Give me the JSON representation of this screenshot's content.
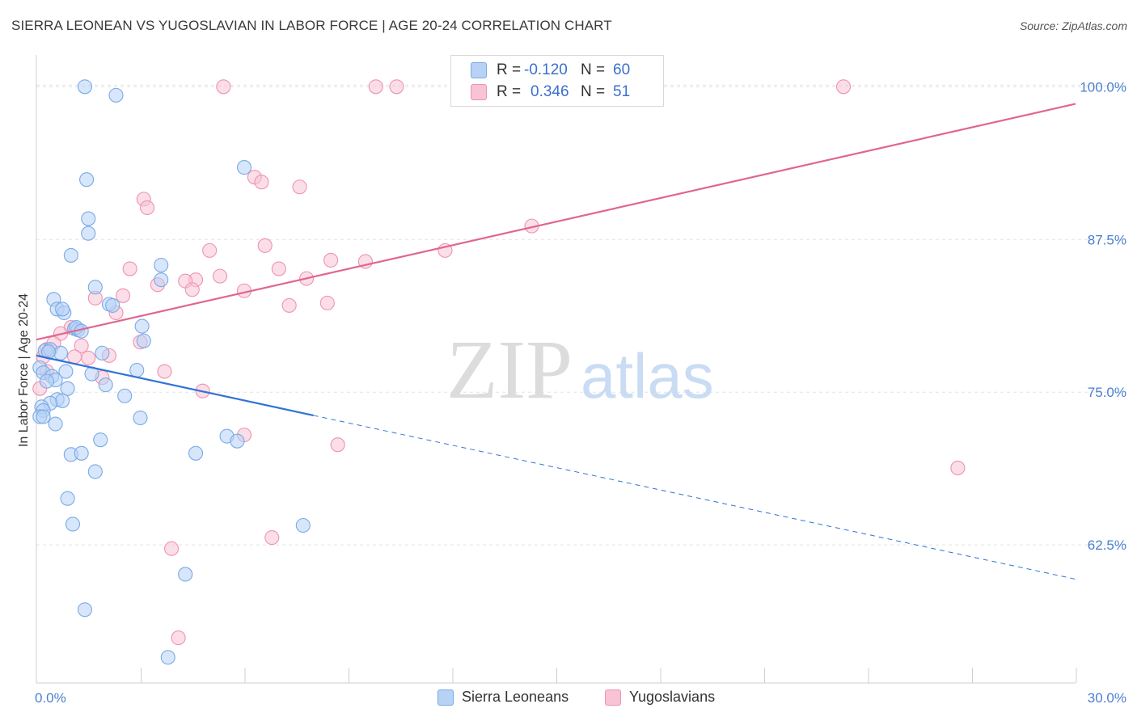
{
  "title": "SIERRA LEONEAN VS YUGOSLAVIAN IN LABOR FORCE | AGE 20-24 CORRELATION CHART",
  "source": "Source: ZipAtlas.com",
  "watermark": {
    "zip": "ZIP",
    "atlas": "atlas"
  },
  "colors": {
    "blue_fill": "#b7d2f5",
    "blue_stroke": "#7aaae6",
    "blue_line": "#2f74d6",
    "pink_fill": "#f8c3d4",
    "pink_stroke": "#ee93b1",
    "pink_line": "#e0668f",
    "grid": "#e4e4e4",
    "tick_text": "#4a7fcf"
  },
  "legend": {
    "rows": [
      {
        "r_label": "R =",
        "r_value": "-0.120",
        "n_label": "N =",
        "n_value": "60",
        "series": "blue"
      },
      {
        "r_label": "R =",
        "r_value": "0.346",
        "n_label": "N =",
        "n_value": "51",
        "series": "pink"
      }
    ]
  },
  "bottom_legend": [
    "Sierra Leoneans",
    "Yugoslavians"
  ],
  "chart_data": {
    "type": "scatter",
    "title": "SIERRA LEONEAN VS YUGOSLAVIAN IN LABOR FORCE | AGE 20-24 CORRELATION CHART",
    "xlabel": "",
    "ylabel": "In Labor Force | Age 20-24",
    "xlim": [
      0,
      30
    ],
    "ylim": [
      51.2,
      102.6
    ],
    "x_tick_labels": [
      {
        "value": 0,
        "label": "0.0%"
      },
      {
        "value": 30,
        "label": "30.0%"
      }
    ],
    "x_minor_ticks": [
      3,
      6,
      9,
      12,
      15,
      18,
      21,
      24,
      27,
      30
    ],
    "y_ticks": [
      {
        "value": 62.5,
        "label": "62.5%"
      },
      {
        "value": 75.0,
        "label": "75.0%"
      },
      {
        "value": 87.5,
        "label": "87.5%"
      },
      {
        "value": 100.0,
        "label": "100.0%"
      }
    ],
    "series": [
      {
        "name": "Sierra Leoneans",
        "color": "blue",
        "points": [
          [
            1.4,
            100.0
          ],
          [
            2.3,
            99.3
          ],
          [
            1.45,
            92.4
          ],
          [
            6.0,
            93.4
          ],
          [
            1.5,
            89.2
          ],
          [
            1.5,
            88.0
          ],
          [
            1.0,
            86.2
          ],
          [
            3.6,
            85.4
          ],
          [
            0.5,
            82.6
          ],
          [
            1.7,
            83.6
          ],
          [
            2.1,
            82.2
          ],
          [
            2.2,
            82.1
          ],
          [
            0.6,
            81.8
          ],
          [
            0.8,
            81.5
          ],
          [
            0.75,
            81.8
          ],
          [
            3.05,
            80.4
          ],
          [
            1.1,
            80.2
          ],
          [
            1.2,
            80.1
          ],
          [
            1.15,
            80.3
          ],
          [
            1.3,
            80.0
          ],
          [
            3.1,
            79.2
          ],
          [
            0.25,
            78.4
          ],
          [
            0.4,
            78.5
          ],
          [
            0.7,
            78.2
          ],
          [
            1.9,
            78.2
          ],
          [
            0.35,
            78.3
          ],
          [
            0.1,
            77.0
          ],
          [
            0.2,
            76.6
          ],
          [
            0.85,
            76.7
          ],
          [
            1.6,
            76.5
          ],
          [
            2.9,
            76.8
          ],
          [
            0.45,
            76.3
          ],
          [
            0.55,
            76.0
          ],
          [
            0.3,
            75.9
          ],
          [
            2.0,
            75.6
          ],
          [
            0.9,
            75.3
          ],
          [
            2.55,
            74.7
          ],
          [
            0.6,
            74.4
          ],
          [
            0.75,
            74.3
          ],
          [
            0.4,
            74.1
          ],
          [
            0.15,
            73.8
          ],
          [
            0.2,
            73.5
          ],
          [
            0.1,
            73.0
          ],
          [
            0.2,
            73.0
          ],
          [
            3.0,
            72.9
          ],
          [
            0.55,
            72.4
          ],
          [
            1.85,
            71.1
          ],
          [
            5.5,
            71.4
          ],
          [
            5.8,
            71.0
          ],
          [
            1.0,
            69.9
          ],
          [
            1.3,
            70.0
          ],
          [
            4.6,
            70.0
          ],
          [
            1.7,
            68.5
          ],
          [
            0.9,
            66.3
          ],
          [
            1.05,
            64.2
          ],
          [
            7.7,
            64.1
          ],
          [
            4.3,
            60.1
          ],
          [
            1.4,
            57.2
          ],
          [
            3.8,
            53.3
          ],
          [
            3.6,
            84.2
          ]
        ]
      },
      {
        "name": "Yugoslavians",
        "color": "pink",
        "points": [
          [
            5.4,
            100.0
          ],
          [
            9.8,
            100.0
          ],
          [
            10.4,
            100.0
          ],
          [
            13.9,
            100.0
          ],
          [
            23.3,
            100.0
          ],
          [
            6.3,
            92.6
          ],
          [
            6.5,
            92.2
          ],
          [
            7.6,
            91.8
          ],
          [
            3.1,
            90.8
          ],
          [
            3.2,
            90.1
          ],
          [
            14.3,
            88.6
          ],
          [
            6.6,
            87.0
          ],
          [
            5.0,
            86.6
          ],
          [
            11.8,
            86.6
          ],
          [
            8.5,
            85.8
          ],
          [
            9.5,
            85.7
          ],
          [
            2.7,
            85.1
          ],
          [
            7.0,
            85.1
          ],
          [
            5.3,
            84.5
          ],
          [
            7.8,
            84.3
          ],
          [
            4.6,
            84.2
          ],
          [
            4.3,
            84.1
          ],
          [
            3.5,
            83.8
          ],
          [
            4.5,
            83.4
          ],
          [
            6.0,
            83.3
          ],
          [
            2.5,
            82.9
          ],
          [
            1.7,
            82.7
          ],
          [
            7.3,
            82.1
          ],
          [
            8.4,
            82.3
          ],
          [
            2.3,
            81.5
          ],
          [
            1.0,
            80.3
          ],
          [
            0.7,
            79.8
          ],
          [
            0.5,
            79.0
          ],
          [
            1.3,
            78.8
          ],
          [
            3.0,
            79.1
          ],
          [
            0.3,
            78.5
          ],
          [
            0.2,
            77.9
          ],
          [
            1.1,
            77.9
          ],
          [
            1.5,
            77.8
          ],
          [
            2.1,
            78.0
          ],
          [
            3.7,
            76.7
          ],
          [
            1.9,
            76.2
          ],
          [
            4.8,
            75.1
          ],
          [
            0.1,
            75.3
          ],
          [
            6.0,
            71.5
          ],
          [
            8.7,
            70.7
          ],
          [
            26.6,
            68.8
          ],
          [
            6.8,
            63.1
          ],
          [
            3.9,
            62.2
          ],
          [
            4.1,
            54.9
          ],
          [
            0.3,
            76.7
          ]
        ]
      }
    ],
    "trend_lines": [
      {
        "series": "Sierra Leoneans",
        "x0": 0,
        "y0": 78.0,
        "x_solid_end": 8.0,
        "y_solid_end": 73.1,
        "x1": 30,
        "y1": 59.7,
        "style": "solid then dashed"
      },
      {
        "series": "Yugoslavians",
        "x0": 0,
        "y0": 79.3,
        "x1": 30,
        "y1": 98.6,
        "style": "solid"
      }
    ]
  }
}
